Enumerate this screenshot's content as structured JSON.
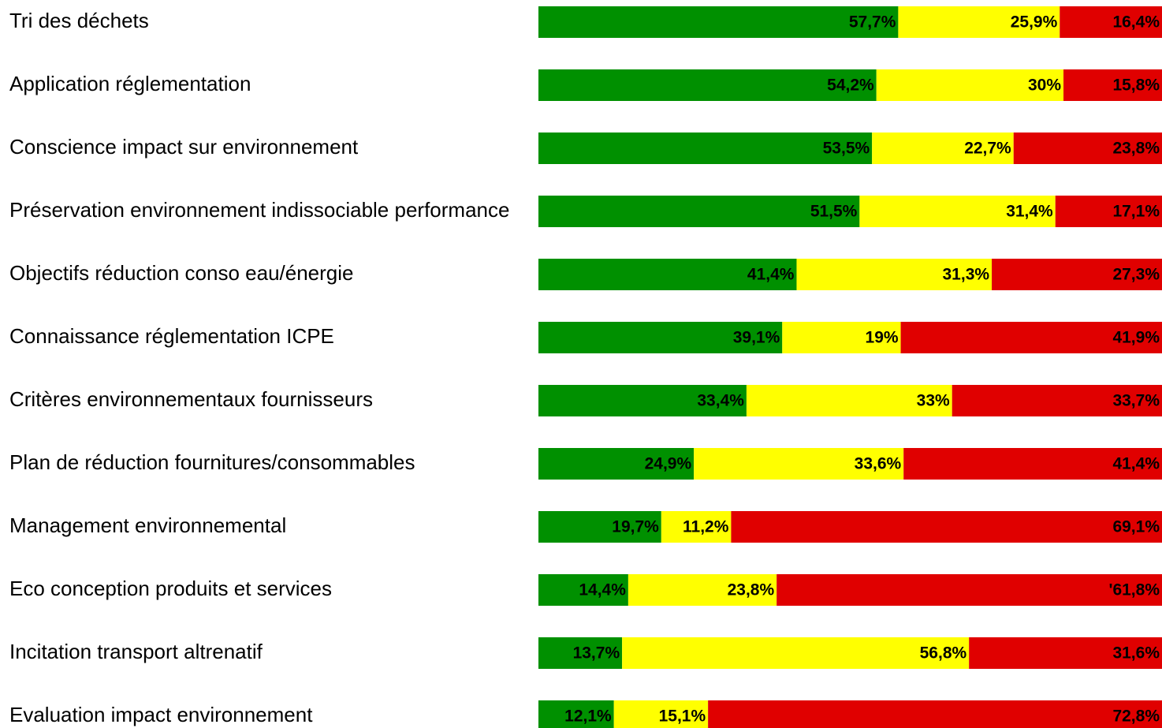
{
  "chart_data": {
    "type": "stacked_bar_100",
    "categories": [
      "Tri des déchets",
      "Application réglementation",
      "Conscience impact sur environnement",
      "Préservation environnement indissociable performance",
      "Objectifs réduction conso eau/énergie",
      "Connaissance réglementation ICPE",
      "Critères environnementaux fournisseurs",
      "Plan de réduction fournitures/consommables",
      "Management environnemental",
      "Eco conception produits et services",
      "Incitation transport altrenatif",
      "Evaluation impact environnement"
    ],
    "series": [
      {
        "color": "#009000",
        "values": [
          57.7,
          54.2,
          53.5,
          51.5,
          41.4,
          39.1,
          33.4,
          24.9,
          19.7,
          14.4,
          13.7,
          12.1
        ],
        "value_labels": [
          "57,7%",
          "54,2%",
          "53,5%",
          "51,5%",
          "41,4%",
          "39,1%",
          "33,4%",
          "24,9%",
          "19,7%",
          "14,4%",
          "13,7%",
          "12,1%"
        ]
      },
      {
        "color": "#ffff00",
        "values": [
          25.9,
          30,
          22.7,
          31.4,
          31.3,
          19,
          33,
          33.6,
          11.2,
          23.8,
          56.8,
          15.1
        ],
        "value_labels": [
          "25,9%",
          "30%",
          "22,7%",
          "31,4%",
          "31,3%",
          "19%",
          "33%",
          "33,6%",
          "11,2%",
          "23,8%",
          "56,8%",
          "15,1%"
        ]
      },
      {
        "color": "#e00000",
        "values": [
          16.4,
          15.8,
          23.8,
          17.1,
          27.3,
          41.9,
          33.7,
          41.4,
          69.1,
          61.8,
          31.6,
          72.8
        ],
        "value_labels": [
          "16,4%",
          "15,8%",
          "23,8%",
          "17,1%",
          "27,3%",
          "41,9%",
          "33,7%",
          "41,4%",
          "69,1%",
          "'61,8%",
          "31,6%",
          "72,8%"
        ]
      }
    ]
  }
}
